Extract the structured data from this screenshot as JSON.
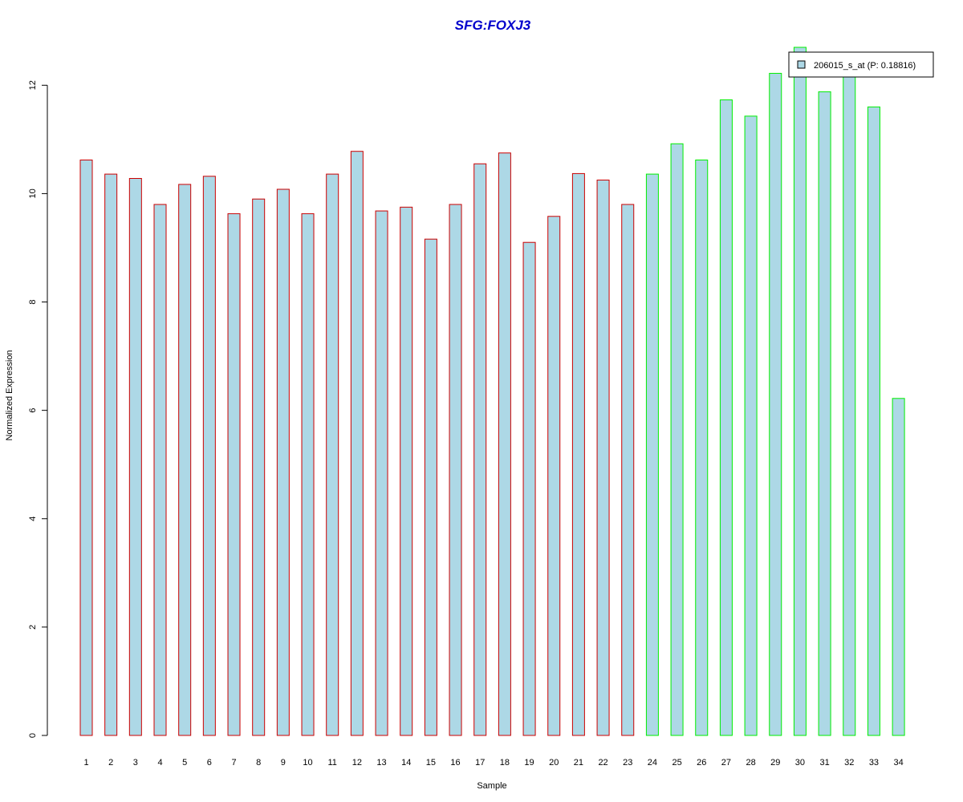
{
  "chart_data": {
    "type": "bar",
    "title": "SFG:FOXJ3",
    "xlabel": "Sample",
    "ylabel": "Normalized Expression",
    "ylim": [
      0,
      12.7
    ],
    "yticks": [
      0,
      2,
      4,
      6,
      8,
      10,
      12
    ],
    "grid": false,
    "legend_position": "top-right",
    "categories": [
      "1",
      "2",
      "3",
      "4",
      "5",
      "6",
      "7",
      "8",
      "9",
      "10",
      "11",
      "12",
      "13",
      "14",
      "15",
      "16",
      "17",
      "18",
      "19",
      "20",
      "21",
      "22",
      "23",
      "24",
      "25",
      "26",
      "27",
      "28",
      "29",
      "30",
      "31",
      "32",
      "33",
      "34"
    ],
    "series": [
      {
        "name": "206015_s_at (P: 0.18816)",
        "values": [
          10.62,
          10.36,
          10.28,
          9.8,
          10.17,
          10.32,
          9.63,
          9.9,
          10.08,
          9.63,
          10.36,
          10.78,
          9.68,
          9.75,
          9.16,
          9.8,
          10.55,
          10.75,
          9.1,
          9.58,
          10.37,
          10.25,
          9.8,
          10.36,
          10.92,
          10.62,
          11.73,
          11.43,
          12.22,
          12.7,
          11.88,
          12.18,
          11.6,
          6.22
        ]
      }
    ],
    "group_borders": [
      "red",
      "red",
      "red",
      "red",
      "red",
      "red",
      "red",
      "red",
      "red",
      "red",
      "red",
      "red",
      "red",
      "red",
      "red",
      "red",
      "red",
      "red",
      "red",
      "red",
      "red",
      "red",
      "red",
      "green",
      "green",
      "green",
      "green",
      "green",
      "green",
      "green",
      "green",
      "green",
      "green",
      "green"
    ],
    "colors": {
      "title": "#0000CC",
      "bar_fill": "#ADD8E6",
      "border_red": "#CC0000",
      "border_green": "#00EE00",
      "axis": "#000000"
    }
  }
}
